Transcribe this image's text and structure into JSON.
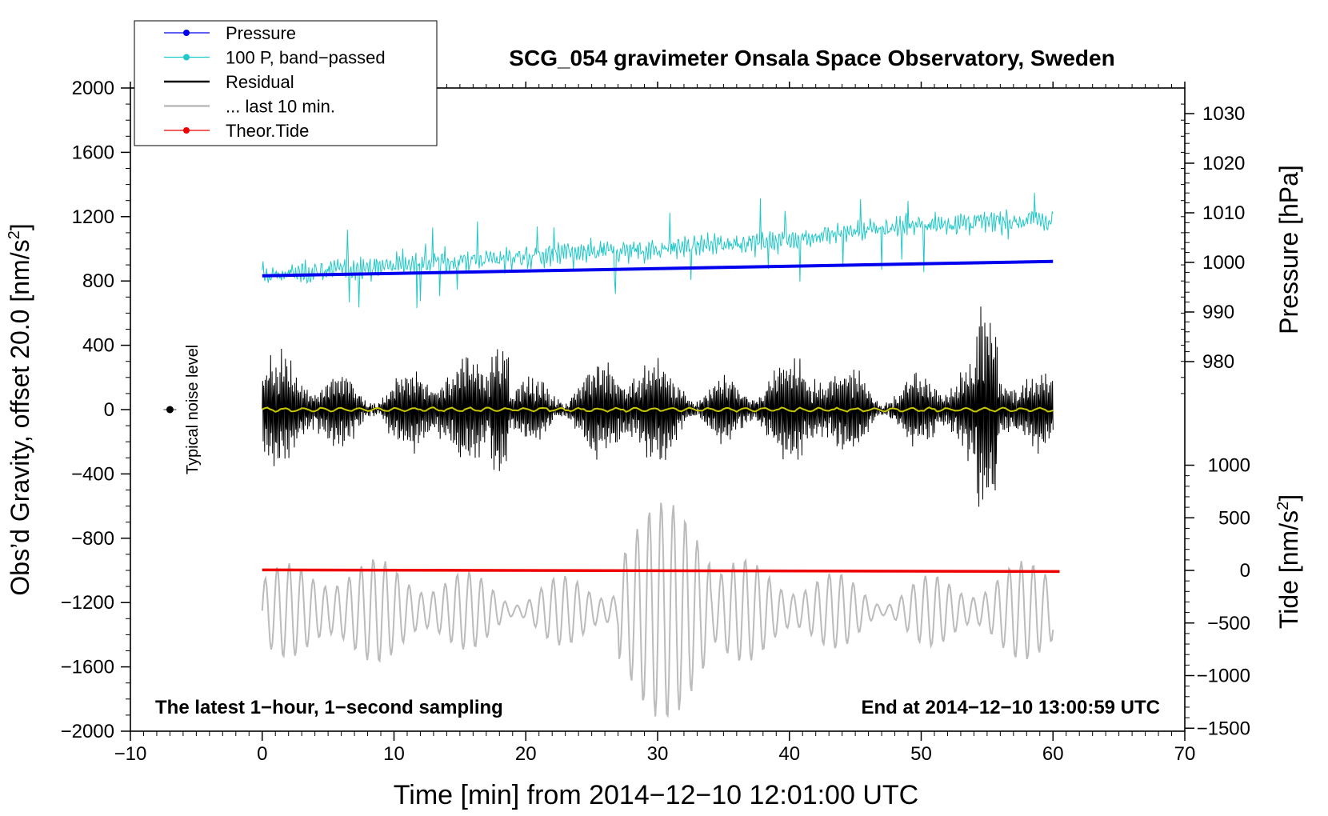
{
  "chart_data": {
    "type": "line",
    "title": "SCG_054 gravimeter Onsala Space Observatory, Sweden",
    "xlabel": "Time [min] from 2014−12−10 12:01:00 UTC",
    "ylabel_left": "Obs’d Gravity, offset 20.0 [nm/s",
    "ylabel_left_sup": "2",
    "ylabel_left_close": "]",
    "ylabel_right_pressure": "Pressure [hPa]",
    "ylabel_right_tide": "Tide [nm/s",
    "ylabel_right_tide_sup": "2",
    "ylabel_right_tide_close": "]",
    "xlim": [
      -10,
      70
    ],
    "ylim": [
      -2000,
      2000
    ],
    "x_ticks": [
      -10,
      0,
      10,
      20,
      30,
      40,
      50,
      60,
      70
    ],
    "x_tick_labels": [
      "−10",
      "0",
      "10",
      "20",
      "30",
      "40",
      "50",
      "60",
      "70"
    ],
    "y_ticks": [
      2000,
      1600,
      1200,
      800,
      400,
      0,
      -400,
      -800,
      -1200,
      -1600,
      -2000
    ],
    "y_tick_labels": [
      "2000",
      "1600",
      "1200",
      "800",
      "400",
      "0",
      "−400",
      "−800",
      "−1200",
      "−1600",
      "−2000"
    ],
    "pressure_axis": {
      "ticks": [
        1030,
        1020,
        1010,
        1000,
        990,
        980
      ],
      "tick_labels": [
        "1030",
        "1020",
        "1010",
        "1000",
        "990",
        "980"
      ]
    },
    "tide_axis": {
      "ticks": [
        1000,
        500,
        0,
        -500,
        -1000,
        -1500
      ],
      "tick_labels": [
        "1000",
        "500",
        "0",
        "−500",
        "−1000",
        "−1500"
      ]
    },
    "legend": {
      "position": "top-left",
      "entries": [
        {
          "label": "Pressure",
          "color": "#0000ee",
          "marker": true
        },
        {
          "label": "100 P, band−passed",
          "color": "#20c8c8",
          "marker": true
        },
        {
          "label": "Residual",
          "color": "#000000",
          "marker": false
        },
        {
          "label": "... last 10 min.",
          "color": "#bbbbbb",
          "marker": false
        },
        {
          "label": "Theor.Tide",
          "color": "#ee0000",
          "marker": true
        }
      ]
    },
    "annotations": {
      "bottom_left": "The latest 1−hour, 1−second sampling",
      "bottom_right": "End at 2014−12−10 13:00:59 UTC",
      "noise_label": "Typical noise level",
      "noise_point": {
        "x": -7,
        "y": 0
      }
    },
    "series": [
      {
        "name": "Pressure",
        "color": "#0000ee",
        "x": [
          0,
          60
        ],
        "y": [
          997.3,
          1000.2
        ]
      },
      {
        "name": "100 P, band−passed",
        "color": "#20c8c8",
        "x": [
          0,
          10,
          20,
          30,
          40,
          50,
          60
        ],
        "y": [
          830,
          900,
          950,
          1000,
          1060,
          1150,
          1180
        ]
      },
      {
        "name": "Residual",
        "color": "#000000",
        "x": [
          0,
          60
        ],
        "y": [
          0,
          0
        ]
      },
      {
        "name": "Residual mean",
        "color": "#c8c800",
        "x": [
          0,
          60
        ],
        "y": [
          0,
          0
        ]
      },
      {
        "name": "... last 10 min.",
        "color": "#bbbbbb",
        "x": [
          0,
          60
        ],
        "y": [
          -1250,
          -1250
        ]
      },
      {
        "name": "Theor.Tide",
        "color": "#ee0000",
        "x": [
          0,
          60.5
        ],
        "y": [
          5,
          -10
        ]
      }
    ]
  }
}
